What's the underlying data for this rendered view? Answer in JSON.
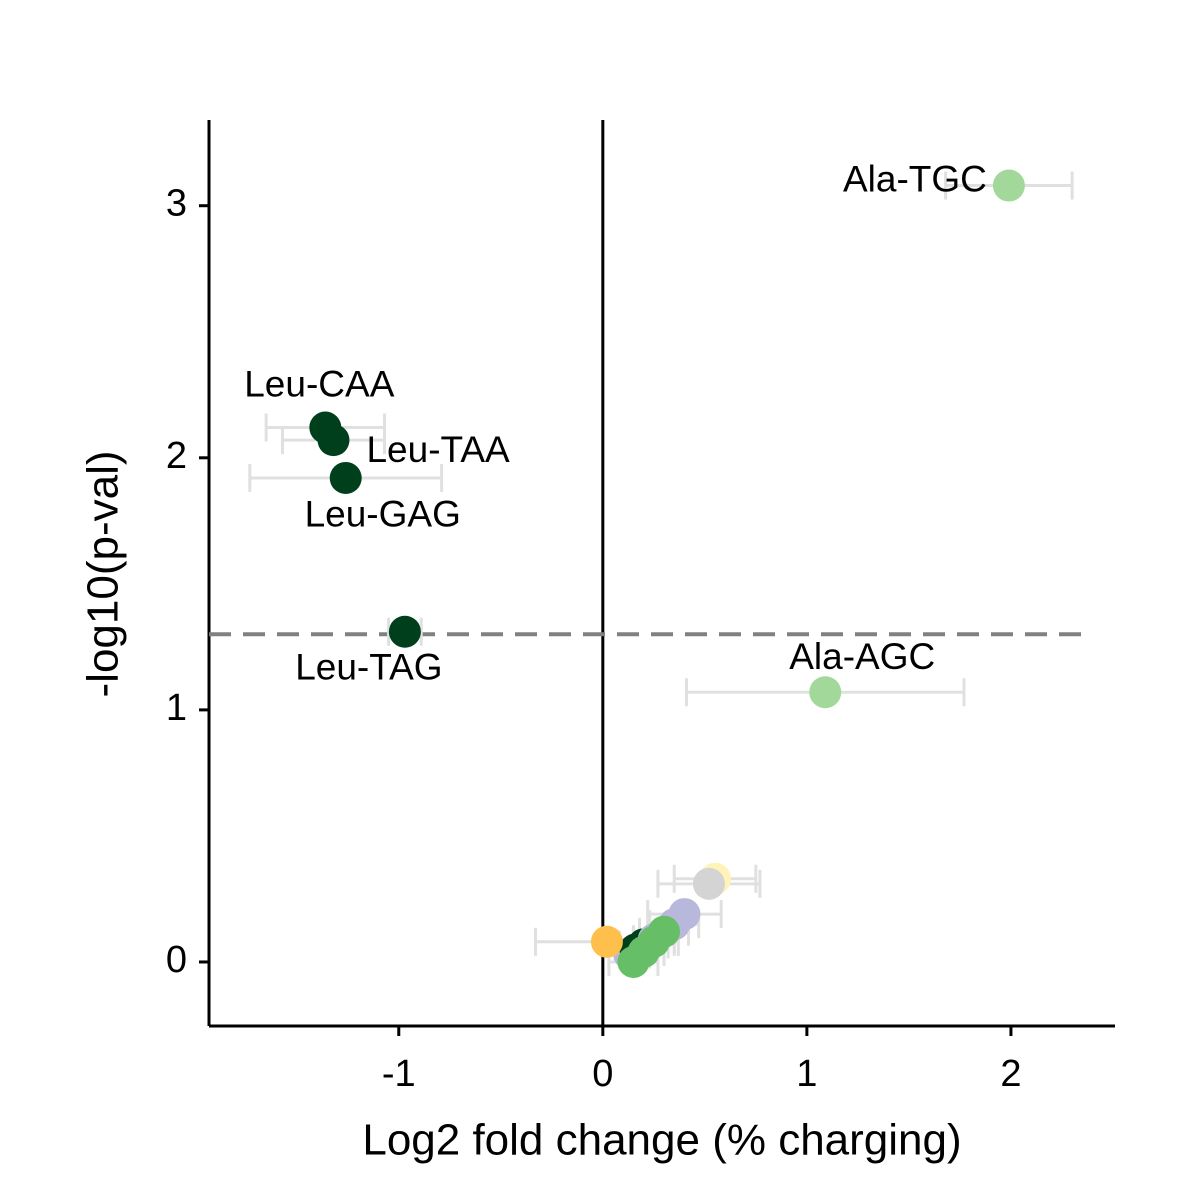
{
  "chart_data": {
    "type": "scatter",
    "xlabel": "Log2 fold change (% charging)",
    "ylabel": "-log10(p-val)",
    "xlim": [
      -1.93,
      2.51
    ],
    "ylim": [
      -0.254,
      3.34
    ],
    "xticks": [
      -1,
      0,
      1,
      2
    ],
    "yticks": [
      0,
      1,
      2,
      3
    ],
    "threshold": 1.3,
    "vline": 0,
    "errorbar_color": "#e0e0e0",
    "points": [
      {
        "x": 0.13,
        "y": 0.03,
        "xerr": 0.1,
        "color": "#b8b8dc"
      },
      {
        "x": 0.16,
        "y": 0.05,
        "xerr": 0.1,
        "color": "#003f1c"
      },
      {
        "x": 0.2,
        "y": 0.07,
        "xerr": 0.12,
        "color": "#003f1c"
      },
      {
        "x": 0.25,
        "y": 0.09,
        "xerr": 0.1,
        "color": "#b8b8dc"
      },
      {
        "x": 0.4,
        "y": 0.19,
        "xerr": 0.18,
        "color": "#b8b8dc"
      },
      {
        "x": 0.35,
        "y": 0.15,
        "xerr": 0.12,
        "color": "#b8b8dc"
      },
      {
        "x": 0.55,
        "y": 0.33,
        "xerr": 0.2,
        "color": "#fff3b8"
      },
      {
        "x": 0.52,
        "y": 0.31,
        "xerr": 0.25,
        "color": "#d4d4d4"
      },
      {
        "x": 0.02,
        "y": 0.08,
        "xerr": 0.35,
        "color": "#ffbf4d"
      },
      {
        "x": 0.15,
        "y": 0.0,
        "xerr": 0.12,
        "color": "#66bf66"
      },
      {
        "x": 0.2,
        "y": 0.04,
        "xerr": 0.1,
        "color": "#66bf66"
      },
      {
        "x": 0.25,
        "y": 0.08,
        "xerr": 0.1,
        "color": "#66bf66"
      },
      {
        "x": 0.3,
        "y": 0.12,
        "xerr": 0.12,
        "color": "#66bf66"
      },
      {
        "x": 1.99,
        "y": 3.08,
        "xerr": 0.31,
        "color": "#a2d99a",
        "label": "Ala-TGC"
      },
      {
        "x": 1.09,
        "y": 1.07,
        "xerr": 0.68,
        "color": "#a2d99a",
        "label": "Ala-AGC"
      },
      {
        "x": -1.36,
        "y": 2.12,
        "xerr": 0.29,
        "color": "#003f1c",
        "label": "Leu-CAA"
      },
      {
        "x": -1.32,
        "y": 2.07,
        "xerr": 0.25,
        "color": "#003f1c",
        "label": "Leu-TAA"
      },
      {
        "x": -1.26,
        "y": 1.92,
        "xerr": 0.47,
        "color": "#003f1c",
        "label": "Leu-GAG"
      },
      {
        "x": -0.97,
        "y": 1.31,
        "xerr": 0.08,
        "color": "#003f1c",
        "label": "Leu-TAG"
      }
    ]
  }
}
